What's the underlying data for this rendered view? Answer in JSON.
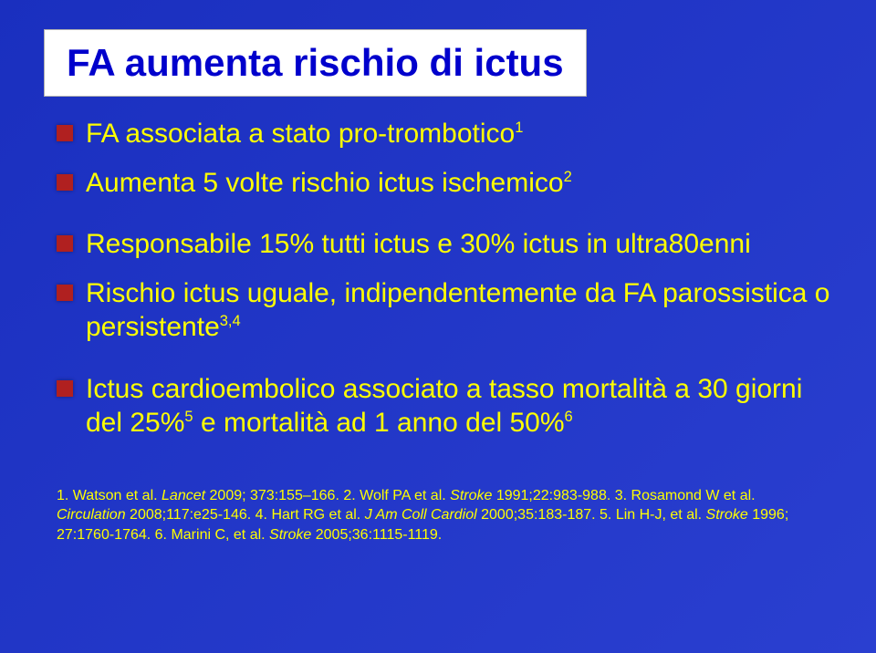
{
  "title": "FA aumenta rischio di ictus",
  "bullet_marker_color": "#b02020",
  "background_gradient": {
    "from": "#1a2fbf",
    "to": "#2a3fd0"
  },
  "bullets": [
    {
      "pre": "FA associata a stato pro-trombotico",
      "sup": "1",
      "gap_after": false
    },
    {
      "pre": "Aumenta 5 volte rischio ictus ischemico",
      "sup": "2",
      "gap_after": true
    },
    {
      "pre": "Responsabile 15% tutti ictus e 30% ictus in ultra80enni",
      "sup": "",
      "gap_after": false
    },
    {
      "pre": "Rischio ictus uguale, indipendentemente da FA parossistica o persistente",
      "sup": "3,4",
      "gap_after": true
    },
    {
      "pre": "Ictus cardioembolico associato a tasso mortalità a 30 giorni del 25%",
      "sup": "5",
      "post": " e mortalità ad 1 anno del 50%",
      "sup2": "6",
      "gap_after": false
    }
  ],
  "references": [
    {
      "lead": "1. ",
      "auth": "Watson et al. ",
      "journal": "Lancet",
      "rest": " 2009; 373:155–166. "
    },
    {
      "lead": "2. ",
      "auth": "Wolf PA et al. ",
      "journal": "Stroke",
      "rest": " 1991;22:983-988. "
    },
    {
      "lead": "3. ",
      "auth": "Rosamond W et al. ",
      "journal": "Circulation",
      "rest": " 2008;117:e25-146. "
    },
    {
      "lead": "4. ",
      "auth": "Hart RG et al. ",
      "journal": "J Am Coll Cardiol",
      "rest": " 2000;35:183-187. "
    },
    {
      "lead": "5. ",
      "auth": "Lin H-J, et al. ",
      "journal": "Stroke",
      "rest": " 1996; 27:1760-1764. "
    },
    {
      "lead": "6. ",
      "auth": "Marini C, et al. ",
      "journal": "Stroke",
      "rest": " 2005;36:1115-1119."
    }
  ]
}
